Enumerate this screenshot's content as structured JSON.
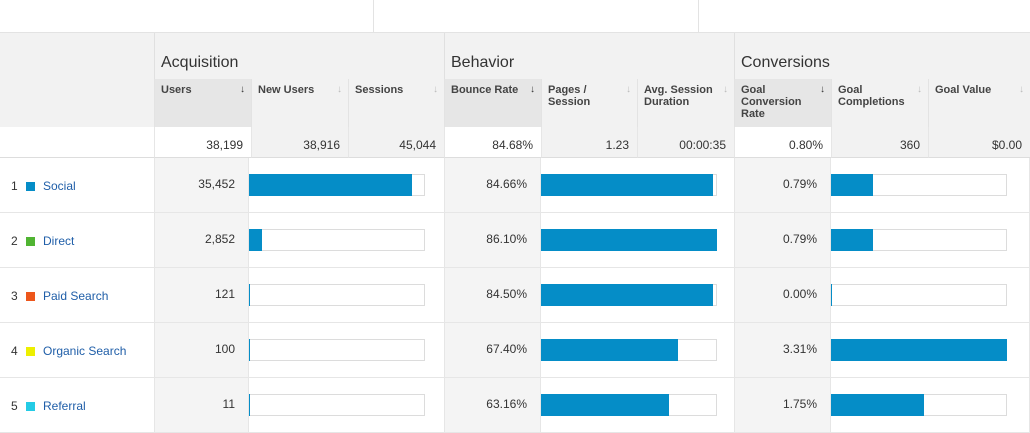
{
  "groups": {
    "acquisition": "Acquisition",
    "behavior": "Behavior",
    "conversions": "Conversions"
  },
  "columns": {
    "users": "Users",
    "new_users": "New Users",
    "sessions": "Sessions",
    "bounce_rate": "Bounce Rate",
    "pages_session": "Pages / Session",
    "avg_session": "Avg. Session Duration",
    "goal_conv_rate": "Goal Conversion Rate",
    "goal_completions": "Goal Completions",
    "goal_value": "Goal Value"
  },
  "sort_icon": "down-arrow-icon",
  "totals": {
    "users": "38,199",
    "new_users": "38,916",
    "sessions": "45,044",
    "bounce_rate": "84.68%",
    "pages_session": "1.23",
    "avg_session": "00:00:35",
    "goal_conv_rate": "0.80%",
    "goal_completions": "360",
    "goal_value": "$0.00"
  },
  "rows": [
    {
      "rank": "1",
      "channel": "Social",
      "color": "#058dc7",
      "users": "35,452",
      "bounce_rate": "84.66%",
      "goal_conv_rate": "0.79%",
      "users_share": 0.928,
      "pages_share": 0.98,
      "goal_share": 0.24
    },
    {
      "rank": "2",
      "channel": "Direct",
      "color": "#50b432",
      "users": "2,852",
      "bounce_rate": "86.10%",
      "goal_conv_rate": "0.79%",
      "users_share": 0.075,
      "pages_share": 1.0,
      "goal_share": 0.24
    },
    {
      "rank": "3",
      "channel": "Paid Search",
      "color": "#ed561b",
      "users": "121",
      "bounce_rate": "84.50%",
      "goal_conv_rate": "0.00%",
      "users_share": 0.005,
      "pages_share": 0.975,
      "goal_share": 0.0
    },
    {
      "rank": "4",
      "channel": "Organic Search",
      "color": "#edef00",
      "users": "100",
      "bounce_rate": "67.40%",
      "goal_conv_rate": "3.31%",
      "users_share": 0.004,
      "pages_share": 0.78,
      "goal_share": 1.0
    },
    {
      "rank": "5",
      "channel": "Referral",
      "color": "#24cbe5",
      "users": "11",
      "bounce_rate": "63.16%",
      "goal_conv_rate": "1.75%",
      "users_share": 0.002,
      "pages_share": 0.73,
      "goal_share": 0.53
    }
  ]
}
